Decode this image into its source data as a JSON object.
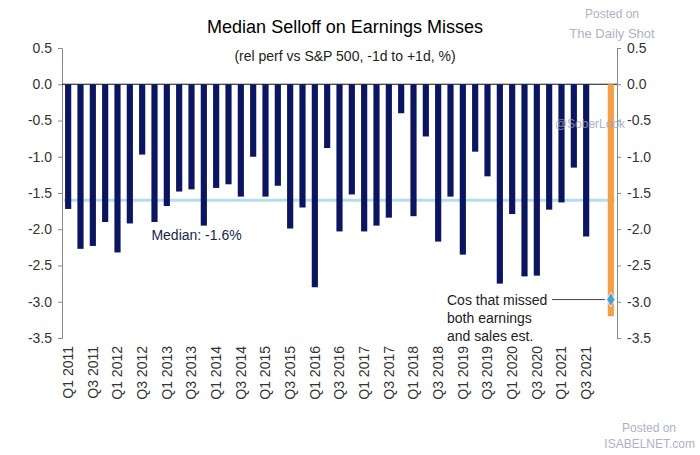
{
  "chart_data": {
    "type": "bar",
    "title": "Median Selloff on Earnings Misses",
    "subtitle": "(rel perf vs S&P 500, -1d to +1d, %)",
    "categories": [
      "Q1 2011",
      null,
      "Q3 2011",
      null,
      "Q1 2012",
      null,
      "Q3 2012",
      null,
      "Q1 2013",
      null,
      "Q3 2013",
      null,
      "Q1 2014",
      null,
      "Q3 2014",
      null,
      "Q1 2015",
      null,
      "Q3 2015",
      null,
      "Q1 2016",
      null,
      "Q3 2016",
      null,
      "Q1 2017",
      null,
      "Q3 2017",
      null,
      "Q1 2018",
      null,
      "Q3 2018",
      null,
      "Q1 2019",
      null,
      "Q3 2019",
      null,
      "Q1 2020",
      null,
      "Q3 2020",
      null,
      "Q1 2021",
      null,
      "Q3 2021",
      null,
      null
    ],
    "series": [
      {
        "type": "bar",
        "color": "#0b1560",
        "values": [
          -1.72,
          -2.27,
          -2.23,
          -1.9,
          -2.32,
          -1.92,
          -0.97,
          -1.9,
          -1.68,
          -1.48,
          -1.45,
          -1.95,
          -1.43,
          -1.38,
          -1.55,
          -1.0,
          -1.55,
          -1.4,
          -1.99,
          -1.7,
          -2.8,
          -0.88,
          -2.03,
          -1.52,
          -2.03,
          -1.95,
          -1.84,
          -0.4,
          -1.82,
          -0.72,
          -2.17,
          -1.55,
          -2.35,
          -0.93,
          -1.27,
          -2.75,
          -1.79,
          -2.65,
          -2.64,
          -1.73,
          -1.63,
          -1.15,
          -2.1,
          null,
          null
        ]
      },
      {
        "type": "bar",
        "color": "#f4a04a",
        "values": [
          null,
          null,
          null,
          null,
          null,
          null,
          null,
          null,
          null,
          null,
          null,
          null,
          null,
          null,
          null,
          null,
          null,
          null,
          null,
          null,
          null,
          null,
          null,
          null,
          null,
          null,
          null,
          null,
          null,
          null,
          null,
          null,
          null,
          null,
          null,
          null,
          null,
          null,
          null,
          null,
          null,
          null,
          null,
          null,
          -3.2
        ]
      },
      {
        "type": "scatter",
        "marker": "diamond",
        "color": "#4a9fd4",
        "values": [
          null,
          null,
          null,
          null,
          null,
          null,
          null,
          null,
          null,
          null,
          null,
          null,
          null,
          null,
          null,
          null,
          null,
          null,
          null,
          null,
          null,
          null,
          null,
          null,
          null,
          null,
          null,
          null,
          null,
          null,
          null,
          null,
          null,
          null,
          null,
          null,
          null,
          null,
          null,
          null,
          null,
          null,
          null,
          null,
          -2.97
        ]
      }
    ],
    "median": {
      "value": -1.6,
      "label": "Median: -1.6%",
      "color": "#b8dcef"
    },
    "annotation": [
      "Cos that missed",
      "both earnings",
      "and sales est."
    ],
    "watermarks": [
      "Posted on",
      "The Daily Shot",
      "@SoberLook",
      "Posted on",
      "ISABELNET.com"
    ],
    "ylim": [
      -3.5,
      0.5
    ],
    "yticks": [
      0.5,
      {
        "value": 0,
        "label": "0.0"
      },
      -0.5,
      {
        "value": -1,
        "label": "-1.0"
      },
      -1.5,
      {
        "value": -2,
        "label": "-2.0"
      },
      -2.5,
      {
        "value": -3,
        "label": "-3.0"
      },
      -3.5
    ],
    "y2lim": [
      -3.5,
      0.5
    ],
    "y2ticks": [
      0.5,
      {
        "value": 0,
        "label": "0.0"
      },
      -0.5,
      {
        "value": -1,
        "label": "-1.0"
      },
      -1.5,
      {
        "value": -2,
        "label": "-2.0"
      },
      -2.5,
      {
        "value": -3,
        "label": "-3.0"
      },
      -3.5
    ],
    "grid": false
  }
}
